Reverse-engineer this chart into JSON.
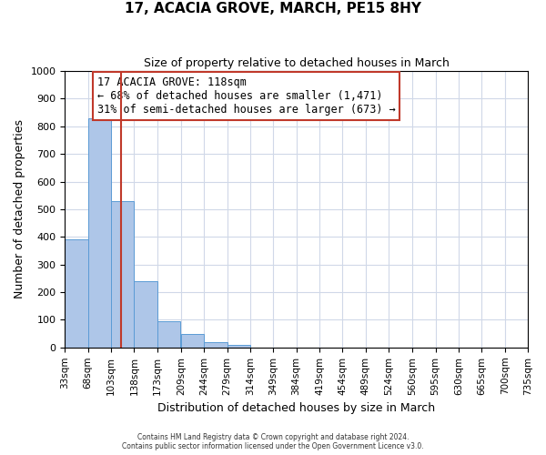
{
  "title": "17, ACACIA GROVE, MARCH, PE15 8HY",
  "subtitle": "Size of property relative to detached houses in March",
  "xlabel": "Distribution of detached houses by size in March",
  "ylabel": "Number of detached properties",
  "bar_values": [
    390,
    828,
    530,
    240,
    95,
    50,
    20,
    10,
    0,
    0,
    0,
    0,
    0,
    0,
    0,
    0,
    0,
    0,
    0,
    0
  ],
  "bin_labels": [
    "33sqm",
    "68sqm",
    "103sqm",
    "138sqm",
    "173sqm",
    "209sqm",
    "244sqm",
    "279sqm",
    "314sqm",
    "349sqm",
    "384sqm",
    "419sqm",
    "454sqm",
    "489sqm",
    "524sqm",
    "560sqm",
    "595sqm",
    "630sqm",
    "665sqm",
    "700sqm",
    "735sqm"
  ],
  "bin_edges": [
    33,
    68,
    103,
    138,
    173,
    209,
    244,
    279,
    314,
    349,
    384,
    419,
    454,
    489,
    524,
    560,
    595,
    630,
    665,
    700,
    735
  ],
  "bar_color": "#aec6e8",
  "bar_edge_color": "#5b9bd5",
  "vline_x": 118,
  "vline_color": "#c0392b",
  "ylim": [
    0,
    1000
  ],
  "yticks": [
    0,
    100,
    200,
    300,
    400,
    500,
    600,
    700,
    800,
    900,
    1000
  ],
  "annotation_title": "17 ACACIA GROVE: 118sqm",
  "annotation_line1": "← 68% of detached houses are smaller (1,471)",
  "annotation_line2": "31% of semi-detached houses are larger (673) →",
  "annotation_box_color": "#ffffff",
  "annotation_box_edge": "#c0392b",
  "grid_color": "#d0d8e8",
  "background_color": "#ffffff",
  "footer1": "Contains HM Land Registry data © Crown copyright and database right 2024.",
  "footer2": "Contains public sector information licensed under the Open Government Licence v3.0."
}
